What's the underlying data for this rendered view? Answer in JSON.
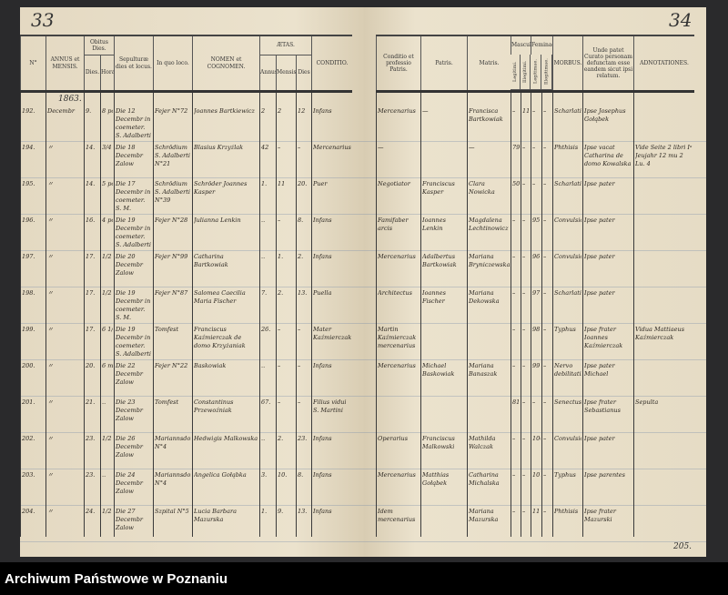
{
  "left_page": {
    "number": "33",
    "year": "1863.",
    "headers": {
      "no": "N°",
      "annus": "ANNUS et MENSIS.",
      "obitus": "Obitus Dies.",
      "obitus_dies": "Dies.",
      "obitus_hora": "Hora",
      "sepultura": "Sepulturæ dies et locus.",
      "loco": "In quo loco.",
      "nomen": "NOMEN et COGNOMEN.",
      "aetas": "ÆTAS.",
      "aetas_annus": "Annus.",
      "aetas_mensis": "Mensis.",
      "aetas_dies": "Dies",
      "conditio": "CONDITIO."
    },
    "rows": [
      {
        "no": "192.",
        "mensis": "Decembr",
        "dies": "9.",
        "hora": "8 pom.",
        "sepultura": "Die 12 Decembr in coemeter. S. Adalberti",
        "loco": "Fejer N°72",
        "nomen": "Joannes Bartkiewicz",
        "annus": "2",
        "mens": "2",
        "d": "12",
        "conditio": "Infans"
      },
      {
        "no": "194.",
        "mensis": "〃",
        "dies": "14.",
        "hora": "3/4 12 mat.",
        "sepultura": "Die 18 Decembr Zalow",
        "loco": "Schrödium S. Adalberti N°21",
        "nomen": "Blasius Krzyżlak",
        "annus": "42",
        "mens": "–",
        "d": "–",
        "conditio": "Mercenarius"
      },
      {
        "no": "195.",
        "mensis": "〃",
        "dies": "14.",
        "hora": "5 pom.",
        "sepultura": "Die 17 Decembr in coemeter. S. M. Magdalenae",
        "loco": "Schrödium S. Adalberti N°39",
        "nomen": "Schröder Joannes Kasper",
        "annus": "1.",
        "mens": "11",
        "d": "20.",
        "conditio": "Puer"
      },
      {
        "no": "196.",
        "mensis": "〃",
        "dies": "16.",
        "hora": "4 pom.",
        "sepultura": "Die 19 Decembr in coemeter. S. Adalberti",
        "loco": "Fejer N°28",
        "nomen": "Julianna Lenkin",
        "annus": "..",
        "mens": "–",
        "d": "8.",
        "conditio": "Infans"
      },
      {
        "no": "197.",
        "mensis": "〃",
        "dies": "17.",
        "hora": "1/2 8 mat.",
        "sepultura": "Die 20 Decembr Zalow",
        "loco": "Fejer N°99",
        "nomen": "Catharina Bartkowiak",
        "annus": "..",
        "mens": "1.",
        "d": "2.",
        "conditio": "Infans"
      },
      {
        "no": "198.",
        "mensis": "〃",
        "dies": "17.",
        "hora": "1/2 9 mat.",
        "sepultura": "Die 19 Decembr in coemeter. S. M. Magdalenae",
        "loco": "Fejer N°87",
        "nomen": "Salomea Caecilia Maria Fischer",
        "annus": "7.",
        "mens": "2.",
        "d": "13.",
        "conditio": "Puella"
      },
      {
        "no": "199.",
        "mensis": "〃",
        "dies": "17.",
        "hora": "6 1/2 mat.",
        "sepultura": "Die 19 Decembr in coemeter. S. Adalberti",
        "loco": "Tomfest",
        "nomen": "Franciscus Kaźmierczak de domo Krzyżaniak",
        "annus": "26.",
        "mens": "–",
        "d": "–",
        "conditio": "Mater Kaźmierczak"
      },
      {
        "no": "200.",
        "mensis": "〃",
        "dies": "20.",
        "hora": "6 mat.",
        "sepultura": "Die 22 Decembr Zalow",
        "loco": "Fejer N°22",
        "nomen": "Baskowiak",
        "annus": "..",
        "mens": "–",
        "d": "–",
        "conditio": "Infans"
      },
      {
        "no": "201.",
        "mensis": "〃",
        "dies": "21.",
        "hora": "..",
        "sepultura": "Die 23 Decembr Zalow",
        "loco": "Tomfest",
        "nomen": "Constantinus Przewoźniak",
        "annus": "67.",
        "mens": "–",
        "d": "–",
        "conditio": "Filius vidui S. Martini"
      },
      {
        "no": "202.",
        "mensis": "〃",
        "dies": "23.",
        "hora": "1/2 8",
        "sepultura": "Die 26 Decembr Zalow",
        "loco": "Mariannsdorf N°4",
        "nomen": "Hedwigis Malkowska",
        "annus": "..",
        "mens": "2.",
        "d": "23.",
        "conditio": "Infans"
      },
      {
        "no": "203.",
        "mensis": "〃",
        "dies": "23.",
        "hora": "..",
        "sepultura": "Die 24 Decembr Zalow",
        "loco": "Mariannsdorf N°4",
        "nomen": "Angelica Gołąbka",
        "annus": "3.",
        "mens": "10.",
        "d": "8.",
        "conditio": "Infans"
      },
      {
        "no": "204.",
        "mensis": "〃",
        "dies": "24.",
        "hora": "1/2 4 mat.",
        "sepultura": "Die 27 Decembr Zalow",
        "loco": "Szpital N°5",
        "nomen": "Lucia Barbara Mazurska",
        "annus": "1.",
        "mens": "9.",
        "d": "13.",
        "conditio": "Infans"
      }
    ]
  },
  "right_page": {
    "number": "34",
    "footer_number": "205.",
    "headers": {
      "conditio": "Conditio et professio Patris.",
      "nomen": "NOMEN et COGNOMEN",
      "patris": "Patris.",
      "matris": "Matris.",
      "masculi": "Masculi",
      "feminae": "Feminae",
      "legitimi": "Legitimi.",
      "illegitimi": "Illegitimi.",
      "legitimae": "Legitimae.",
      "illegitimae": "Illegitimae.",
      "morbus": "MORBUS.",
      "unde": "Unde patet Curato personam defunctam esse eandem sicut ipsi relatum.",
      "adnotationes": "ADNOTATIONES."
    },
    "rows": [
      {
        "conditio": "Mercenarius",
        "patris": "—",
        "matris": "Francisca Bartkowiak",
        "ml": "–",
        "mi": "11",
        "fl": "–",
        "fi": "–",
        "morbus": "Scharlatina",
        "unde": "Ipse Josephus Gołąbek",
        "adn": ""
      },
      {
        "conditio": "—",
        "patris": "",
        "matris": "—",
        "ml": "79",
        "mi": "–",
        "fl": "–",
        "fi": "–",
        "morbus": "Phthisis",
        "unde": "Ipse vacat Catharina de domo Kowalska",
        "adn": "Vide Seite 2 libri Iᵃ Jeujahr 12 mu 2 Lu. 4"
      },
      {
        "conditio": "Negotiator",
        "patris": "Franciscus Kasper",
        "matris": "Clara Nowicka",
        "ml": "50",
        "mi": "–",
        "fl": "–",
        "fi": "–",
        "morbus": "Scharlatina",
        "unde": "Ipse pater",
        "adn": ""
      },
      {
        "conditio": "Famifaber arcis",
        "patris": "Ioannes Lenkin",
        "matris": "Magdalena Lechtinowicz",
        "ml": "–",
        "mi": "–",
        "fl": "95",
        "fi": "–",
        "morbus": "Convulsiones",
        "unde": "Ipse pater",
        "adn": ""
      },
      {
        "conditio": "Mercenarius",
        "patris": "Adalbertus Bartkowiak",
        "matris": "Mariana Bryniczewska",
        "ml": "–",
        "mi": "–",
        "fl": "96",
        "fi": "–",
        "morbus": "Convulsiones",
        "unde": "Ipse pater",
        "adn": ""
      },
      {
        "conditio": "Architectus",
        "patris": "Ioannes Fischer",
        "matris": "Mariana Dekowska",
        "ml": "–",
        "mi": "–",
        "fl": "97",
        "fi": "–",
        "morbus": "Scharlatina",
        "unde": "Ipse pater",
        "adn": ""
      },
      {
        "conditio": "Martin Kaźmierczak mercenarius",
        "patris": "",
        "matris": "",
        "ml": "–",
        "mi": "–",
        "fl": "98",
        "fi": "–",
        "morbus": "Typhus",
        "unde": "Ipse frater Ioannes Kaźmierczak",
        "adn": "Vidua Mattiaeus Kaźmierczak"
      },
      {
        "conditio": "Mercenarius",
        "patris": "Michael Baskowiak",
        "matris": "Mariana Banaszak",
        "ml": "–",
        "mi": "–",
        "fl": "99",
        "fi": "–",
        "morbus": "Nervo debilitatis",
        "unde": "Ipse pater Michael",
        "adn": ""
      },
      {
        "conditio": "",
        "patris": "",
        "matris": "",
        "ml": "81",
        "mi": "–",
        "fl": "–",
        "fi": "–",
        "morbus": "Senectus",
        "unde": "Ipse frater Sebastianus",
        "adn": "Sepulta"
      },
      {
        "conditio": "Operarius",
        "patris": "Franciscus Malkowski",
        "matris": "Mathilda Walczak",
        "ml": "–",
        "mi": "–",
        "fl": "100",
        "fi": "–",
        "morbus": "Convulsiones",
        "unde": "Ipse pater",
        "adn": ""
      },
      {
        "conditio": "Mercenarius",
        "patris": "Matthias Gołąbek",
        "matris": "Catharina Michalska",
        "ml": "–",
        "mi": "–",
        "fl": "101",
        "fi": "–",
        "morbus": "Typhus",
        "unde": "Ipse parentes",
        "adn": ""
      },
      {
        "conditio": "Idem mercenarius",
        "patris": "",
        "matris": "Mariana Mazurska",
        "ml": "–",
        "mi": "–",
        "fl": "11",
        "fi": "–",
        "morbus": "Phthisis",
        "unde": "Ipse frater Mazurski",
        "adn": ""
      }
    ]
  },
  "footer": {
    "archive": "Archiwum Państwowe w Poznaniu"
  }
}
